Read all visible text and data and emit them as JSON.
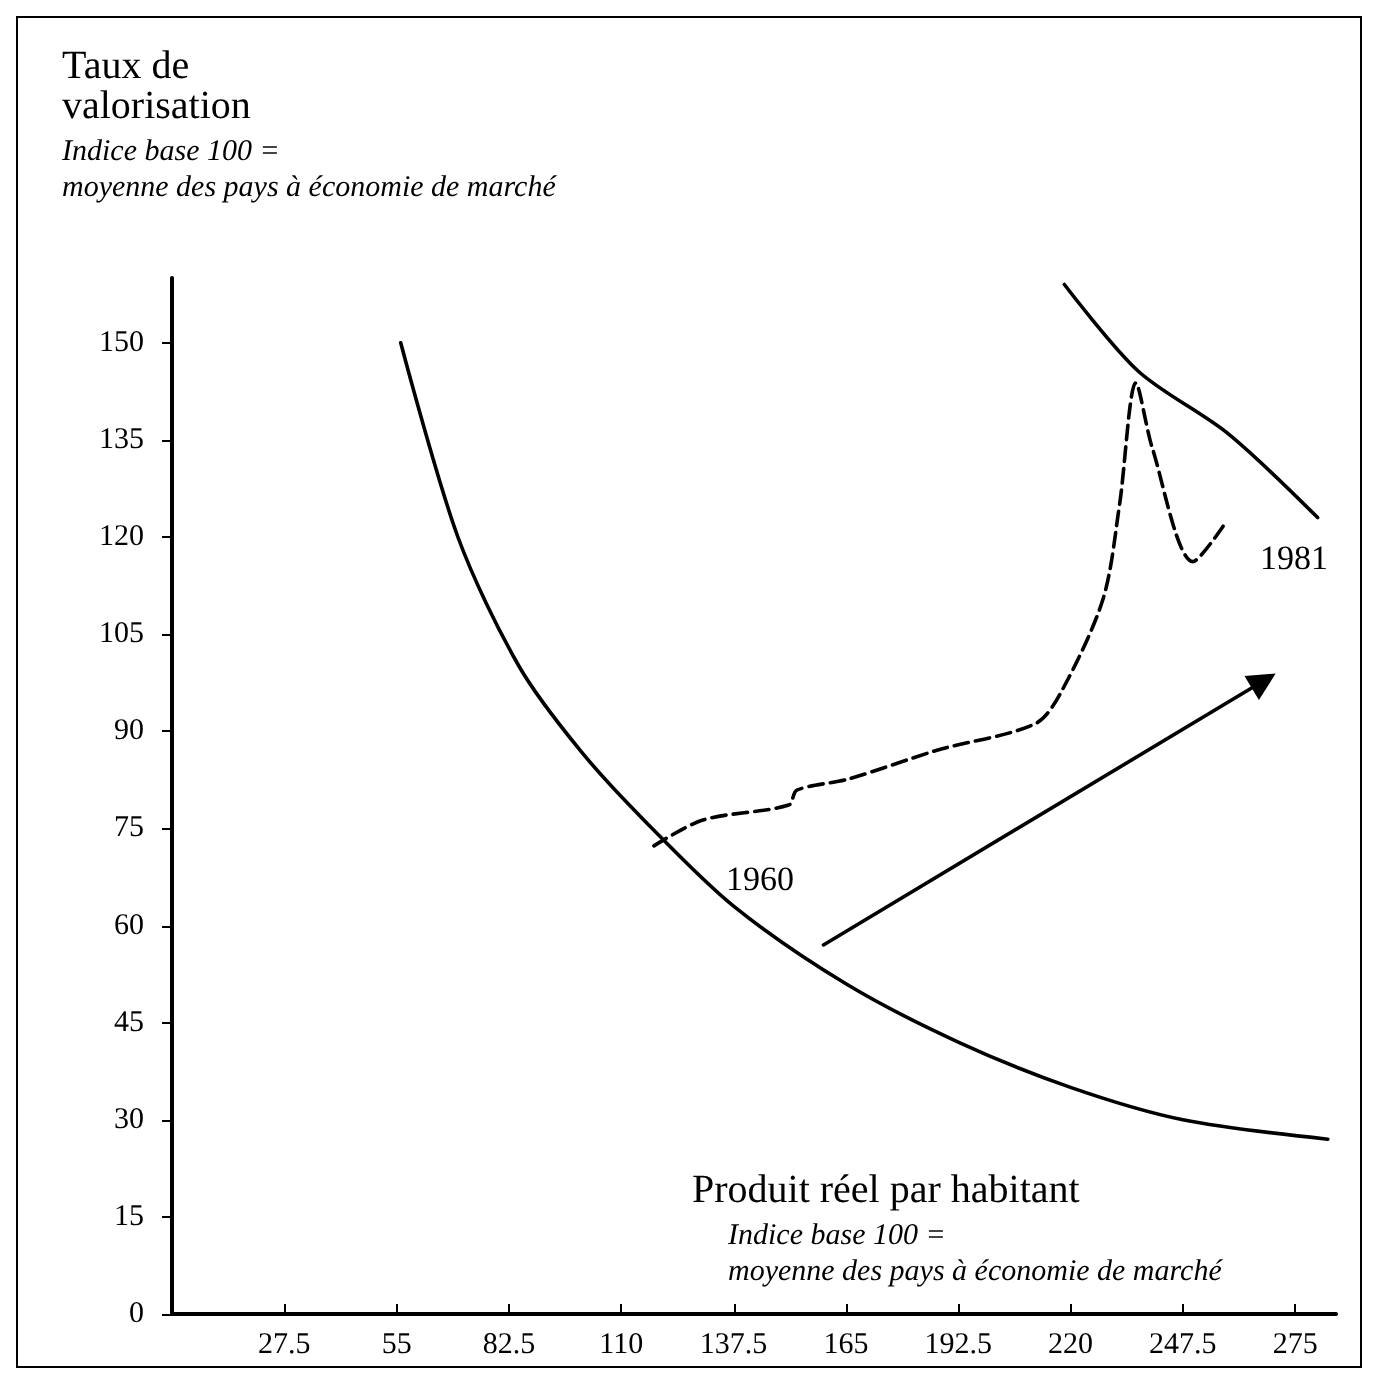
{
  "chart_data": {
    "type": "line",
    "ylabel": "Taux de valorisation",
    "xlabel": "Produit réel par habitant",
    "annotations": [
      "Indice base 100 = moyenne des pays à économie de marché",
      "Indice base 100 = moyenne des pays à économie de marché",
      {
        "text": "1960",
        "x": 118,
        "y": 72.3
      },
      {
        "text": "1981",
        "x": 257.5,
        "y": 121.8
      }
    ],
    "xlim": [
      0,
      285
    ],
    "xticks": [
      27.5,
      55,
      82.5,
      110,
      137.5,
      165,
      192.5,
      220,
      247.5,
      275
    ],
    "ylim": [
      0,
      160
    ],
    "yticks": [
      0,
      15,
      30,
      45,
      60,
      75,
      90,
      105,
      120,
      135,
      150
    ],
    "grid": false,
    "series": [
      {
        "color": "#000000",
        "line_style": "solid",
        "x": [
          56,
          70,
          85,
          100,
          116,
          137.5,
          165,
          192.5,
          220,
          247.5,
          283
        ],
        "values": [
          150,
          120,
          100,
          87,
          76,
          63,
          51,
          42,
          35,
          30,
          27
        ]
      },
      {
        "color": "#000000",
        "line_style": "solid",
        "x": [
          218.5,
          236.6,
          258.5,
          280.5
        ],
        "values": [
          159,
          145.6,
          136,
          123
        ]
      },
      {
        "color": "#000000",
        "line_style": "dashed",
        "x": [
          118,
          130,
          151,
          153,
          165.5,
          187.5,
          211.5,
          218,
          228,
          232,
          236,
          240,
          250,
          257.5
        ],
        "values": [
          72.3,
          76.3,
          78.6,
          80.9,
          82.6,
          87.1,
          91.2,
          96.4,
          110.5,
          125,
          143.8,
          133.8,
          116.2,
          121.8
        ]
      },
      {
        "color": "#000000",
        "line_style": "solid",
        "marker": "triangle",
        "x": [
          159.5,
          267.3
        ],
        "values": [
          57,
          97.8
        ]
      }
    ]
  }
}
